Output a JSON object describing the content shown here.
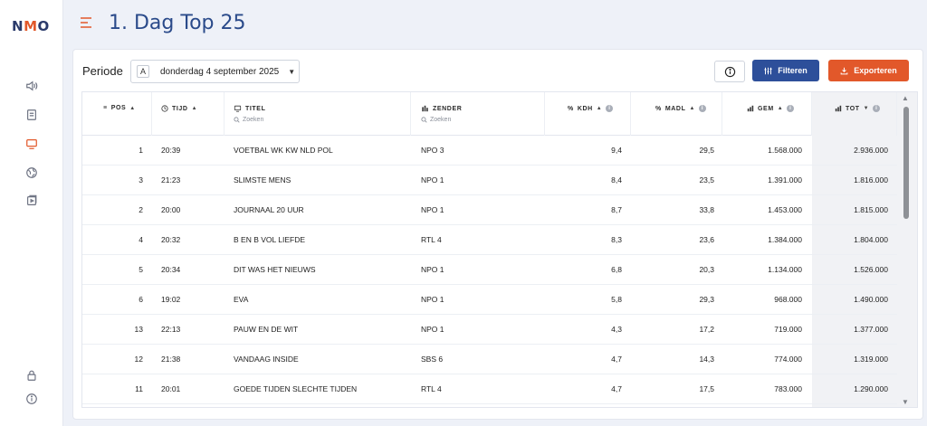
{
  "app": {
    "logo_text_n": "N",
    "logo_text_m": "M",
    "logo_text_o": "O"
  },
  "sidebar": {
    "icons": [
      "speaker-icon",
      "document-icon",
      "tv-icon",
      "globe-icon",
      "media-icon",
      "lock-icon",
      "info-icon"
    ]
  },
  "header": {
    "title": "1. Dag Top 25"
  },
  "toolbar": {
    "periode_label": "Periode",
    "date_badge": "A",
    "date_value": "donderdag 4 september 2025",
    "filter_label": "Filteren",
    "export_label": "Exporteren"
  },
  "colors": {
    "accent": "#e2582a",
    "primary": "#2d4f9a",
    "title": "#2a4a8a"
  },
  "table": {
    "columns": {
      "pos": "POS",
      "tijd": "TIJD",
      "titel": "TITEL",
      "titel_search": "Zoeken",
      "zender": "ZENDER",
      "zender_search": "Zoeken",
      "kdh": "KDH",
      "madl": "MADL",
      "gem": "GEM",
      "tot": "TOT"
    },
    "rows": [
      {
        "pos": "1",
        "tijd": "20:39",
        "titel": "VOETBAL WK KW NLD POL",
        "zender": "NPO 3",
        "kdh": "9,4",
        "madl": "29,5",
        "gem": "1.568.000",
        "tot": "2.936.000"
      },
      {
        "pos": "3",
        "tijd": "21:23",
        "titel": "SLIMSTE MENS",
        "zender": "NPO 1",
        "kdh": "8,4",
        "madl": "23,5",
        "gem": "1.391.000",
        "tot": "1.816.000"
      },
      {
        "pos": "2",
        "tijd": "20:00",
        "titel": "JOURNAAL 20 UUR",
        "zender": "NPO 1",
        "kdh": "8,7",
        "madl": "33,8",
        "gem": "1.453.000",
        "tot": "1.815.000"
      },
      {
        "pos": "4",
        "tijd": "20:32",
        "titel": "B EN B VOL LIEFDE",
        "zender": "RTL 4",
        "kdh": "8,3",
        "madl": "23,6",
        "gem": "1.384.000",
        "tot": "1.804.000"
      },
      {
        "pos": "5",
        "tijd": "20:34",
        "titel": "DIT WAS HET NIEUWS",
        "zender": "NPO 1",
        "kdh": "6,8",
        "madl": "20,3",
        "gem": "1.134.000",
        "tot": "1.526.000"
      },
      {
        "pos": "6",
        "tijd": "19:02",
        "titel": "EVA",
        "zender": "NPO 1",
        "kdh": "5,8",
        "madl": "29,3",
        "gem": "968.000",
        "tot": "1.490.000"
      },
      {
        "pos": "13",
        "tijd": "22:13",
        "titel": "PAUW EN DE WIT",
        "zender": "NPO 1",
        "kdh": "4,3",
        "madl": "17,2",
        "gem": "719.000",
        "tot": "1.377.000"
      },
      {
        "pos": "12",
        "tijd": "21:38",
        "titel": "VANDAAG INSIDE",
        "zender": "SBS 6",
        "kdh": "4,7",
        "madl": "14,3",
        "gem": "774.000",
        "tot": "1.319.000"
      },
      {
        "pos": "11",
        "tijd": "20:01",
        "titel": "GOEDE TIJDEN SLECHTE TIJDEN",
        "zender": "RTL 4",
        "kdh": "4,7",
        "madl": "17,5",
        "gem": "783.000",
        "tot": "1.290.000"
      }
    ]
  }
}
